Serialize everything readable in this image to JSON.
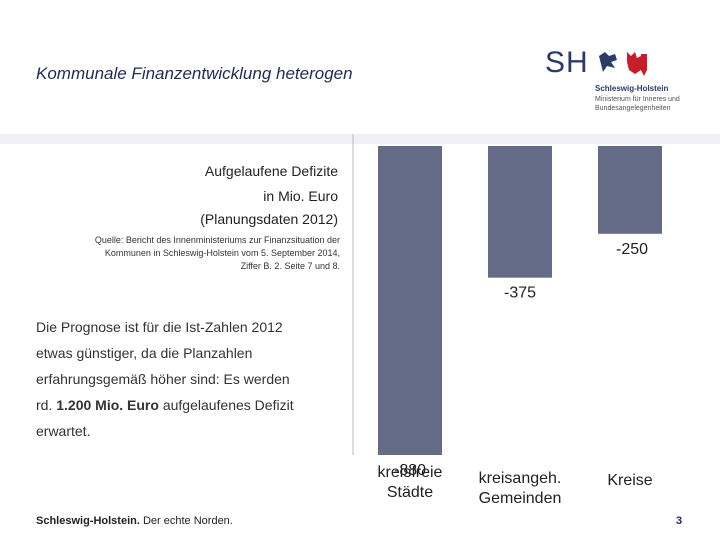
{
  "header": {
    "title": "Kommunale Finanzentwicklung heterogen"
  },
  "logo": {
    "mark": "SH",
    "line1": "Schleswig-Holstein",
    "line2": "Ministerium für Inneres und Bundesangelegenheiten"
  },
  "chart_data": {
    "type": "bar",
    "title": "Aufgelaufene Defizite",
    "unit_label": "in Mio. Euro",
    "subtitle": "(Planungsdaten 2012)",
    "categories": [
      [
        "kreisfreie",
        "Städte"
      ],
      [
        "kreisangeh.",
        "Gemeinden"
      ],
      [
        "Kreise"
      ]
    ],
    "values": [
      -880,
      -375,
      -250
    ],
    "value_labels": [
      "-880",
      "-375",
      "-250"
    ],
    "ylim": [
      -880,
      0
    ],
    "bar_color": "#636b87"
  },
  "source": {
    "line1": "Quelle: Bericht des Innenministeriums zur Finanzsituation der",
    "line2": "Kommunen in Schleswig-Holstein vom 5. September 2014,",
    "line3": "Ziffer B. 2. Seite 7 und 8."
  },
  "body": {
    "p1": "Die Prognose ist für die Ist-Zahlen 2012",
    "p2": "etwas günstiger, da die Planzahlen",
    "p3": "erfahrungsgemäß höher sind: Es werden",
    "p4_a": "rd. ",
    "p4_b": "1.200 Mio. Euro",
    "p4_c": " aufgelaufenes Defizit",
    "p5": "erwartet."
  },
  "footer": {
    "brand": "Schleswig-Holstein.",
    "slogan": " Der echte Norden.",
    "page": "3"
  }
}
